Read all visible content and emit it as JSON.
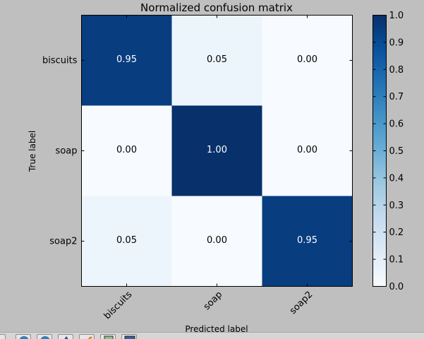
{
  "chart_data": {
    "type": "heatmap",
    "title": "Normalized confusion matrix",
    "xlabel": "Predicted label",
    "ylabel": "True label",
    "x_categories": [
      "biscuits",
      "soap",
      "soap2"
    ],
    "y_categories": [
      "biscuits",
      "soap",
      "soap2"
    ],
    "values": [
      [
        0.95,
        0.05,
        0.0
      ],
      [
        0.0,
        1.0,
        0.0
      ],
      [
        0.05,
        0.0,
        0.95
      ]
    ],
    "cell_labels": [
      [
        "0.95",
        "0.05",
        "0.00"
      ],
      [
        "0.00",
        "1.00",
        "0.00"
      ],
      [
        "0.05",
        "0.00",
        "0.95"
      ]
    ],
    "colormap": "Blues",
    "colorbar": {
      "range": [
        0.0,
        1.0
      ],
      "ticks": [
        "0.0",
        "0.1",
        "0.2",
        "0.3",
        "0.4",
        "0.5",
        "0.6",
        "0.7",
        "0.8",
        "0.9",
        "1.0"
      ]
    },
    "x_tick_rotation_deg": 45,
    "grid": false
  },
  "colors": {
    "figure_background": "#bfbfbf",
    "text_dark": "#000000",
    "text_light": "#ffffff",
    "low": "#f7fbff",
    "high": "#08306b"
  },
  "toolbar": {
    "icons": [
      "home-icon",
      "back-icon",
      "forward-icon",
      "pan-icon",
      "zoom-icon",
      "configure-icon",
      "save-icon"
    ]
  }
}
